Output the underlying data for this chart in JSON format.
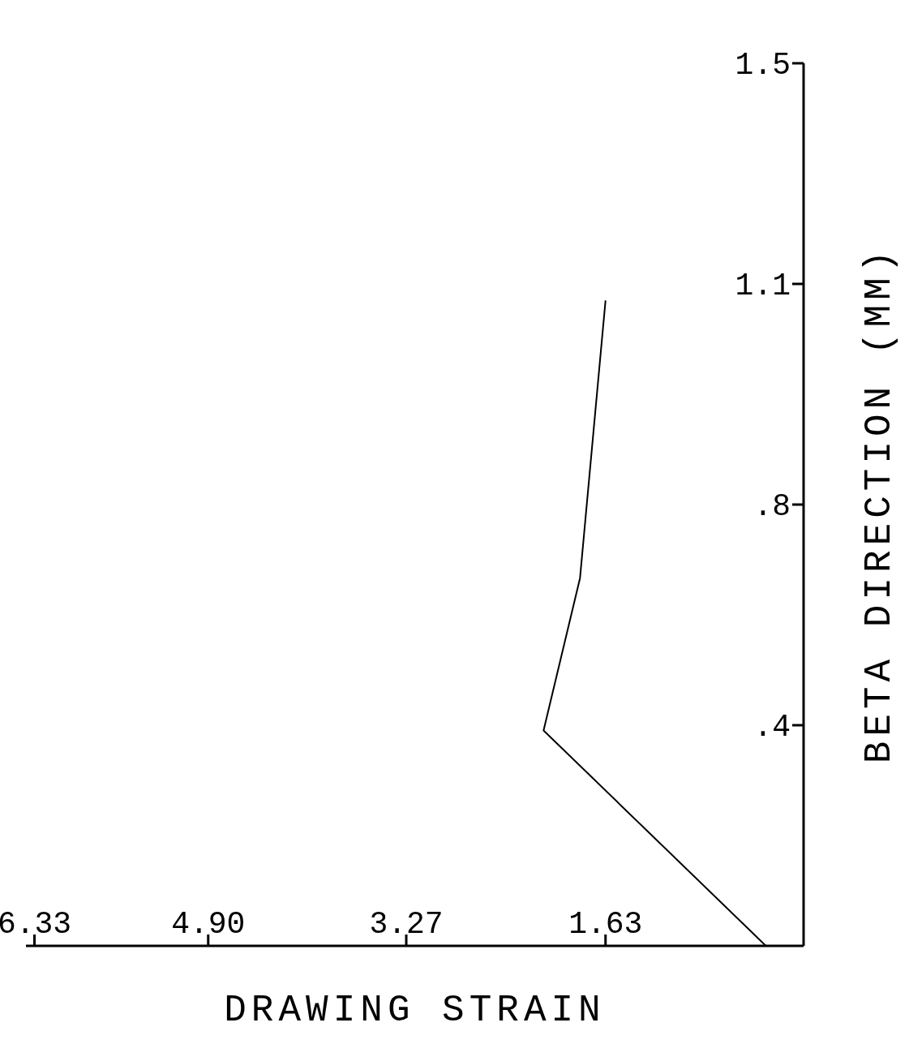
{
  "chart_data": {
    "type": "line",
    "xlabel": "DRAWING STRAIN",
    "ylabel": "BETA DIRECTION (MM)",
    "x": [
      0.31,
      2.14,
      1.84,
      1.63
    ],
    "series": [
      {
        "color": "#000000",
        "values": [
          0,
          0.366,
          0.625,
          1.097
        ]
      }
    ],
    "xlim": [
      6.4,
      0
    ],
    "xticks": [
      1.63,
      3.27,
      {
        "value": 4.9,
        "label": "4.90"
      },
      6.33
    ],
    "ylim": [
      0,
      1.5
    ],
    "yticks": [
      {
        "value": 0.375,
        "label": ".4"
      },
      {
        "value": 0.75,
        "label": ".8"
      },
      {
        "value": 1.125,
        "label": "1.1"
      },
      {
        "value": 1.5,
        "label": "1.5"
      }
    ],
    "grid": false,
    "legend": false,
    "marker": "none",
    "line_style": "solid"
  }
}
